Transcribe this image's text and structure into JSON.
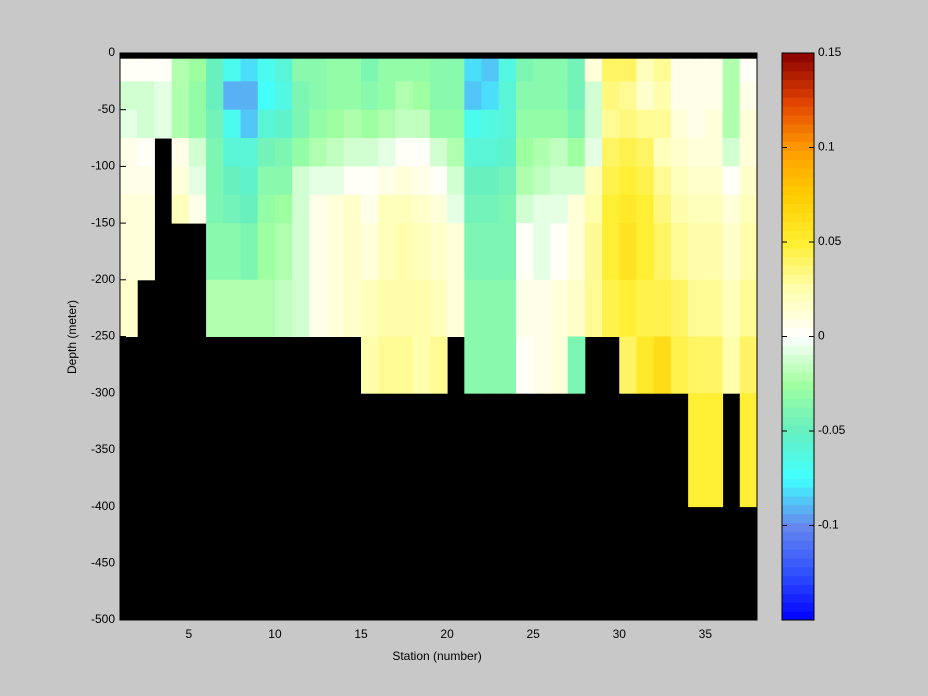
{
  "chart_data": {
    "type": "heatmap",
    "xlabel": "Station (number)",
    "ylabel": "Depth (meter)",
    "x": [
      1,
      2,
      3,
      4,
      5,
      6,
      7,
      8,
      9,
      10,
      11,
      12,
      13,
      14,
      15,
      16,
      17,
      18,
      19,
      20,
      21,
      22,
      23,
      24,
      25,
      26,
      27,
      28,
      29,
      30,
      31,
      32,
      33,
      34,
      35,
      36,
      37,
      38
    ],
    "y": [
      0,
      -5,
      -25,
      -50,
      -75,
      -100,
      -125,
      -150,
      -200,
      -250,
      -300,
      -400,
      -500
    ],
    "values": [
      [
        null,
        0.002,
        -0.01,
        -0.008,
        0.005,
        0.008,
        0.01,
        0.012,
        0.015,
        null,
        null,
        null
      ],
      [
        null,
        0.002,
        -0.012,
        -0.01,
        0.004,
        0.008,
        0.01,
        0.012,
        null,
        null,
        null,
        null
      ],
      [
        null,
        0.003,
        -0.008,
        -0.005,
        null,
        null,
        null,
        null,
        null,
        null,
        null,
        null
      ],
      [
        null,
        -0.02,
        -0.02,
        -0.02,
        0.005,
        0.01,
        0.02,
        null,
        null,
        null,
        null,
        null
      ],
      [
        null,
        -0.025,
        -0.03,
        -0.03,
        -0.01,
        -0.005,
        0.005,
        null,
        null,
        null,
        null,
        null
      ],
      [
        null,
        -0.05,
        -0.05,
        -0.045,
        -0.04,
        -0.04,
        -0.04,
        -0.035,
        -0.02,
        null,
        null,
        null
      ],
      [
        null,
        -0.07,
        -0.09,
        -0.07,
        -0.06,
        -0.05,
        -0.045,
        -0.035,
        -0.02,
        null,
        null,
        null
      ],
      [
        null,
        -0.08,
        -0.09,
        -0.085,
        -0.06,
        -0.055,
        -0.05,
        -0.04,
        -0.02,
        null,
        null,
        null
      ],
      [
        null,
        -0.07,
        -0.075,
        -0.06,
        -0.045,
        -0.035,
        -0.03,
        -0.025,
        -0.02,
        null,
        null,
        null
      ],
      [
        null,
        -0.06,
        -0.065,
        -0.055,
        -0.04,
        -0.035,
        -0.025,
        -0.02,
        -0.015,
        null,
        null,
        null
      ],
      [
        null,
        -0.035,
        -0.04,
        -0.04,
        -0.03,
        -0.01,
        -0.01,
        -0.01,
        -0.01,
        null,
        null,
        null
      ],
      [
        null,
        -0.035,
        -0.035,
        -0.03,
        -0.02,
        -0.005,
        0.005,
        0.008,
        0.008,
        null,
        null,
        null
      ],
      [
        null,
        -0.03,
        -0.03,
        -0.025,
        -0.015,
        -0.005,
        0.01,
        0.012,
        0.012,
        null,
        null,
        null
      ],
      [
        null,
        -0.03,
        -0.03,
        -0.02,
        -0.01,
        0.0,
        0.015,
        0.015,
        0.018,
        null,
        null,
        null
      ],
      [
        null,
        -0.04,
        -0.035,
        -0.025,
        -0.01,
        0.0,
        0.005,
        0.01,
        0.02,
        0.025,
        null,
        null
      ],
      [
        null,
        -0.03,
        -0.03,
        -0.02,
        -0.005,
        0.005,
        0.02,
        0.02,
        0.025,
        0.03,
        null,
        null
      ],
      [
        null,
        -0.03,
        -0.02,
        -0.015,
        0.0,
        0.01,
        0.02,
        0.025,
        0.025,
        0.03,
        null,
        null
      ],
      [
        null,
        -0.03,
        -0.025,
        -0.015,
        0.0,
        0.005,
        0.015,
        0.02,
        0.025,
        0.025,
        null,
        null
      ],
      [
        null,
        -0.035,
        -0.035,
        -0.03,
        -0.01,
        0.0,
        0.01,
        0.015,
        0.02,
        0.03,
        null,
        null
      ],
      [
        null,
        -0.035,
        -0.035,
        -0.03,
        -0.02,
        -0.01,
        -0.005,
        0.01,
        0.01,
        null,
        null,
        null
      ],
      [
        null,
        -0.08,
        -0.085,
        -0.07,
        -0.06,
        -0.05,
        -0.045,
        -0.04,
        -0.035,
        -0.035,
        null,
        null
      ],
      [
        null,
        -0.085,
        -0.08,
        -0.065,
        -0.06,
        -0.05,
        -0.045,
        -0.04,
        -0.035,
        -0.035,
        null,
        null
      ],
      [
        null,
        -0.065,
        -0.06,
        -0.06,
        -0.055,
        -0.045,
        -0.04,
        -0.04,
        -0.035,
        -0.035,
        null,
        null
      ],
      [
        null,
        -0.04,
        -0.035,
        -0.03,
        -0.025,
        -0.02,
        -0.01,
        0.002,
        0.005,
        0.002,
        null,
        null
      ],
      [
        null,
        -0.035,
        -0.035,
        -0.03,
        -0.02,
        -0.015,
        -0.008,
        -0.005,
        0.005,
        0.005,
        null,
        null
      ],
      [
        null,
        -0.035,
        -0.035,
        -0.03,
        -0.015,
        -0.01,
        -0.005,
        0.0,
        0.01,
        0.01,
        null,
        null
      ],
      [
        null,
        -0.045,
        -0.045,
        -0.04,
        -0.025,
        -0.01,
        0.01,
        0.01,
        0.015,
        -0.04,
        null,
        null
      ],
      [
        null,
        0.01,
        -0.01,
        -0.01,
        -0.005,
        0.02,
        0.025,
        0.03,
        0.03,
        null,
        null,
        null
      ],
      [
        null,
        0.04,
        0.035,
        0.03,
        0.04,
        0.045,
        0.05,
        0.05,
        0.045,
        null,
        null,
        null
      ],
      [
        null,
        0.04,
        0.03,
        0.035,
        0.045,
        0.05,
        0.055,
        0.06,
        0.05,
        0.04,
        null,
        null
      ],
      [
        null,
        0.02,
        0.015,
        0.03,
        0.04,
        0.045,
        0.05,
        0.05,
        0.045,
        0.055,
        null,
        null
      ],
      [
        null,
        0.03,
        0.025,
        0.03,
        0.02,
        0.03,
        0.035,
        0.04,
        0.045,
        0.065,
        null,
        null
      ],
      [
        null,
        0.005,
        0.005,
        0.01,
        0.015,
        0.02,
        0.025,
        0.03,
        0.04,
        0.045,
        null,
        null
      ],
      [
        null,
        0.005,
        0.005,
        0.005,
        0.01,
        0.015,
        0.02,
        0.025,
        0.03,
        0.04,
        0.05,
        null
      ],
      [
        null,
        0.005,
        0.005,
        0.01,
        0.01,
        0.015,
        0.02,
        0.025,
        0.03,
        0.04,
        0.05,
        null
      ],
      [
        null,
        -0.02,
        -0.02,
        -0.02,
        -0.01,
        0.0,
        0.01,
        0.015,
        0.02,
        0.025,
        null,
        null
      ],
      [
        null,
        0.0,
        0.005,
        0.01,
        0.01,
        0.015,
        0.02,
        0.025,
        0.03,
        0.04,
        0.05,
        null
      ]
    ],
    "xlim": [
      1,
      38
    ],
    "ylim": [
      -500,
      0
    ],
    "xticks": [
      5,
      10,
      15,
      20,
      25,
      30,
      35
    ],
    "yticks": [
      0,
      -50,
      -100,
      -150,
      -200,
      -250,
      -300,
      -350,
      -400,
      -450,
      -500
    ],
    "clim": [
      -0.15,
      0.15
    ],
    "cticks": [
      -0.1,
      -0.05,
      0,
      0.05,
      0.1,
      0.15
    ],
    "colormap": [
      "#0000ff",
      "#3050ff",
      "#6688ee",
      "#40ffff",
      "#66f0c0",
      "#a0ffa0",
      "#ffffff",
      "#ffffb0",
      "#ffee30",
      "#ffcc00",
      "#ff9900",
      "#e04000",
      "#880000"
    ],
    "colormap_levels": 64,
    "nodata_color": "#000000"
  }
}
